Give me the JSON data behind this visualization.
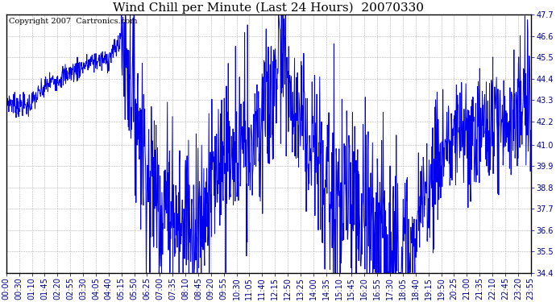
{
  "title": "Wind Chill per Minute (Last 24 Hours)  20070330",
  "copyright_text": "Copyright 2007  Cartronics.com",
  "line_color": "#0000ee",
  "background_color": "#ffffff",
  "grid_color": "#aaaaaa",
  "y_ticks": [
    34.4,
    35.5,
    36.6,
    37.7,
    38.8,
    39.9,
    41.0,
    42.2,
    43.3,
    44.4,
    45.5,
    46.6,
    47.7
  ],
  "ylim": [
    34.4,
    47.7
  ],
  "x_labels": [
    "00:00",
    "00:30",
    "01:10",
    "01:45",
    "02:20",
    "02:55",
    "03:30",
    "04:05",
    "04:40",
    "05:15",
    "05:50",
    "06:25",
    "07:00",
    "07:35",
    "08:10",
    "08:45",
    "09:20",
    "09:55",
    "10:30",
    "11:05",
    "11:40",
    "12:15",
    "12:50",
    "13:25",
    "14:00",
    "14:35",
    "15:10",
    "15:45",
    "16:20",
    "16:55",
    "17:30",
    "18:05",
    "18:40",
    "19:15",
    "19:50",
    "20:25",
    "21:00",
    "21:35",
    "22:10",
    "22:45",
    "23:20",
    "23:55"
  ],
  "title_fontsize": 11,
  "copyright_fontsize": 7,
  "tick_label_fontsize": 7,
  "line_width": 0.7,
  "figwidth": 6.9,
  "figheight": 3.75,
  "dpi": 100
}
